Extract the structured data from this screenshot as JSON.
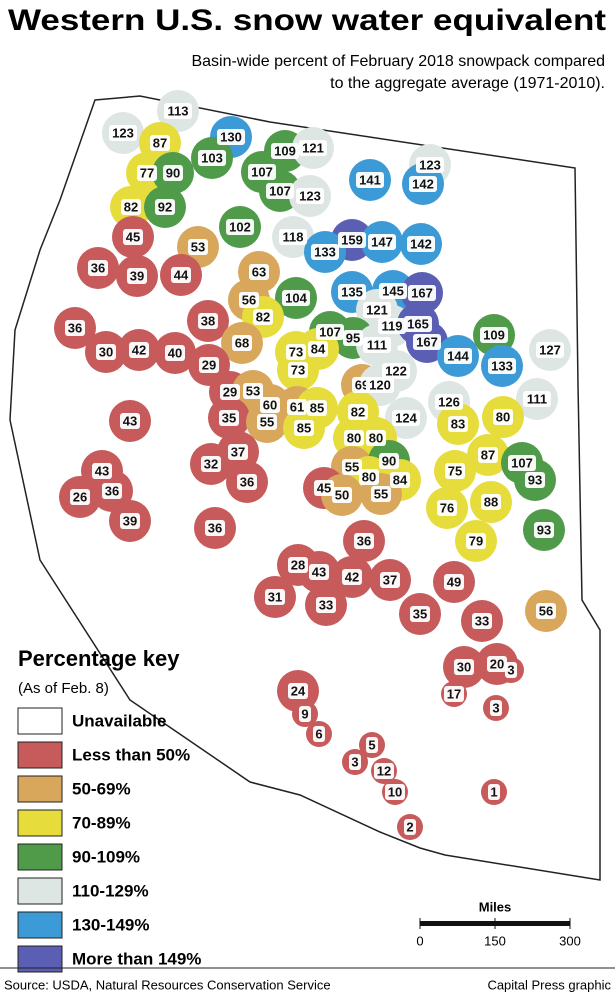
{
  "header": {
    "title": "Western U.S. snow water equivalent",
    "subtitle": [
      "Basin-wide percent of February 2018 snowpack compared",
      "to the aggregate average (1971-2010)."
    ]
  },
  "basins": [
    {
      "v": 113,
      "c": "#dde6e2"
    },
    {
      "v": 123,
      "c": "#dde6e2"
    },
    {
      "v": 87,
      "c": "#e6dc3c"
    },
    {
      "v": 130,
      "c": "#3c9ad6"
    },
    {
      "v": 109,
      "c": "#4f9b4a"
    },
    {
      "v": 121,
      "c": "#dde6e2"
    },
    {
      "v": 123,
      "c": "#dde6e2"
    },
    {
      "v": 77,
      "c": "#e6dc3c"
    },
    {
      "v": 90,
      "c": "#4f9b4a"
    },
    {
      "v": 103,
      "c": "#4f9b4a"
    },
    {
      "v": 107,
      "c": "#4f9b4a"
    },
    {
      "v": 141,
      "c": "#3c9ad6"
    },
    {
      "v": 142,
      "c": "#3c9ad6"
    },
    {
      "v": 82,
      "c": "#e6dc3c"
    },
    {
      "v": 92,
      "c": "#4f9b4a"
    },
    {
      "v": 107,
      "c": "#4f9b4a"
    },
    {
      "v": 123,
      "c": "#dde6e2"
    },
    {
      "v": 45,
      "c": "#c75a5a"
    },
    {
      "v": 102,
      "c": "#4f9b4a"
    },
    {
      "v": 118,
      "c": "#dde6e2"
    },
    {
      "v": 159,
      "c": "#5b5fb3"
    },
    {
      "v": 147,
      "c": "#3c9ad6"
    },
    {
      "v": 142,
      "c": "#3c9ad6"
    },
    {
      "v": 133,
      "c": "#3c9ad6"
    },
    {
      "v": 53,
      "c": "#d9a75c"
    },
    {
      "v": 63,
      "c": "#d9a75c"
    },
    {
      "v": 36,
      "c": "#c75a5a"
    },
    {
      "v": 39,
      "c": "#c75a5a"
    },
    {
      "v": 44,
      "c": "#c75a5a"
    },
    {
      "v": 56,
      "c": "#d9a75c"
    },
    {
      "v": 104,
      "c": "#4f9b4a"
    },
    {
      "v": 135,
      "c": "#3c9ad6"
    },
    {
      "v": 145,
      "c": "#3c9ad6"
    },
    {
      "v": 167,
      "c": "#5b5fb3"
    },
    {
      "v": 121,
      "c": "#dde6e2"
    },
    {
      "v": 82,
      "c": "#e6dc3c"
    },
    {
      "v": 38,
      "c": "#c75a5a"
    },
    {
      "v": 119,
      "c": "#dde6e2"
    },
    {
      "v": 165,
      "c": "#5b5fb3"
    },
    {
      "v": 36,
      "c": "#c75a5a"
    },
    {
      "v": 107,
      "c": "#4f9b4a"
    },
    {
      "v": 95,
      "c": "#4f9b4a"
    },
    {
      "v": 111,
      "c": "#dde6e2"
    },
    {
      "v": 167,
      "c": "#5b5fb3"
    },
    {
      "v": 109,
      "c": "#4f9b4a"
    },
    {
      "v": 127,
      "c": "#dde6e2"
    },
    {
      "v": 68,
      "c": "#d9a75c"
    },
    {
      "v": 73,
      "c": "#e6dc3c"
    },
    {
      "v": 84,
      "c": "#e6dc3c"
    },
    {
      "v": 30,
      "c": "#c75a5a"
    },
    {
      "v": 42,
      "c": "#c75a5a"
    },
    {
      "v": 40,
      "c": "#c75a5a"
    },
    {
      "v": 144,
      "c": "#3c9ad6"
    },
    {
      "v": 133,
      "c": "#3c9ad6"
    },
    {
      "v": 29,
      "c": "#c75a5a"
    },
    {
      "v": 73,
      "c": "#e6dc3c"
    },
    {
      "v": 122,
      "c": "#dde6e2"
    },
    {
      "v": 69,
      "c": "#d9a75c"
    },
    {
      "v": 120,
      "c": "#dde6e2"
    },
    {
      "v": 111,
      "c": "#dde6e2"
    },
    {
      "v": 29,
      "c": "#c75a5a"
    },
    {
      "v": 53,
      "c": "#d9a75c"
    },
    {
      "v": 126,
      "c": "#dde6e2"
    },
    {
      "v": 60,
      "c": "#d9a75c"
    },
    {
      "v": 61,
      "c": "#d9a75c"
    },
    {
      "v": 85,
      "c": "#e6dc3c"
    },
    {
      "v": 82,
      "c": "#e6dc3c"
    },
    {
      "v": 80,
      "c": "#e6dc3c"
    },
    {
      "v": 35,
      "c": "#c75a5a"
    },
    {
      "v": 55,
      "c": "#d9a75c"
    },
    {
      "v": 85,
      "c": "#e6dc3c"
    },
    {
      "v": 43,
      "c": "#c75a5a"
    },
    {
      "v": 124,
      "c": "#dde6e2"
    },
    {
      "v": 83,
      "c": "#e6dc3c"
    },
    {
      "v": 37,
      "c": "#c75a5a"
    },
    {
      "v": 32,
      "c": "#c75a5a"
    },
    {
      "v": 80,
      "c": "#e6dc3c"
    },
    {
      "v": 80,
      "c": "#e6dc3c"
    },
    {
      "v": 87,
      "c": "#e6dc3c"
    },
    {
      "v": 107,
      "c": "#4f9b4a"
    },
    {
      "v": 36,
      "c": "#c75a5a"
    },
    {
      "v": 55,
      "c": "#d9a75c"
    },
    {
      "v": 90,
      "c": "#4f9b4a"
    },
    {
      "v": 75,
      "c": "#e6dc3c"
    },
    {
      "v": 93,
      "c": "#4f9b4a"
    },
    {
      "v": 43,
      "c": "#c75a5a"
    },
    {
      "v": 36,
      "c": "#c75a5a"
    },
    {
      "v": 26,
      "c": "#c75a5a"
    },
    {
      "v": 80,
      "c": "#e6dc3c"
    },
    {
      "v": 84,
      "c": "#e6dc3c"
    },
    {
      "v": 45,
      "c": "#c75a5a"
    },
    {
      "v": 50,
      "c": "#d9a75c"
    },
    {
      "v": 55,
      "c": "#d9a75c"
    },
    {
      "v": 76,
      "c": "#e6dc3c"
    },
    {
      "v": 88,
      "c": "#e6dc3c"
    },
    {
      "v": 93,
      "c": "#4f9b4a"
    },
    {
      "v": 39,
      "c": "#c75a5a"
    },
    {
      "v": 36,
      "c": "#c75a5a"
    },
    {
      "v": 79,
      "c": "#e6dc3c"
    },
    {
      "v": 36,
      "c": "#c75a5a"
    },
    {
      "v": 28,
      "c": "#c75a5a"
    },
    {
      "v": 43,
      "c": "#c75a5a"
    },
    {
      "v": 42,
      "c": "#c75a5a"
    },
    {
      "v": 37,
      "c": "#c75a5a"
    },
    {
      "v": 49,
      "c": "#c75a5a"
    },
    {
      "v": 31,
      "c": "#c75a5a"
    },
    {
      "v": 33,
      "c": "#c75a5a"
    },
    {
      "v": 35,
      "c": "#c75a5a"
    },
    {
      "v": 33,
      "c": "#c75a5a"
    },
    {
      "v": 56,
      "c": "#d9a75c"
    },
    {
      "v": 30,
      "c": "#c75a5a"
    },
    {
      "v": 20,
      "c": "#c75a5a"
    },
    {
      "v": 3,
      "c": "#c75a5a"
    },
    {
      "v": 17,
      "c": "#c75a5a"
    },
    {
      "v": 24,
      "c": "#c75a5a"
    },
    {
      "v": 9,
      "c": "#c75a5a"
    },
    {
      "v": 3,
      "c": "#c75a5a"
    },
    {
      "v": 6,
      "c": "#c75a5a"
    },
    {
      "v": 5,
      "c": "#c75a5a"
    },
    {
      "v": 3,
      "c": "#c75a5a"
    },
    {
      "v": 12,
      "c": "#c75a5a"
    },
    {
      "v": 10,
      "c": "#c75a5a"
    },
    {
      "v": 1,
      "c": "#c75a5a"
    },
    {
      "v": 2,
      "c": "#c75a5a"
    }
  ],
  "key": {
    "title": "Percentage key",
    "note": "(As of Feb. 8)",
    "items": [
      {
        "label": "Unavailable",
        "color": "#ffffff"
      },
      {
        "label": "Less than 50%",
        "color": "#c75a5a"
      },
      {
        "label": "50-69%",
        "color": "#d9a75c"
      },
      {
        "label": "70-89%",
        "color": "#e6dc3c"
      },
      {
        "label": "90-109%",
        "color": "#4f9b4a"
      },
      {
        "label": "110-129%",
        "color": "#dde6e2"
      },
      {
        "label": "130-149%",
        "color": "#3c9ad6"
      },
      {
        "label": "More than 149%",
        "color": "#5b5fb3"
      }
    ]
  },
  "scale": {
    "label": "Miles",
    "ticks": [
      0,
      150,
      300
    ]
  },
  "footer": {
    "source": "Source: USDA, Natural Resources Conservation Service",
    "credit": "Capital Press graphic"
  }
}
